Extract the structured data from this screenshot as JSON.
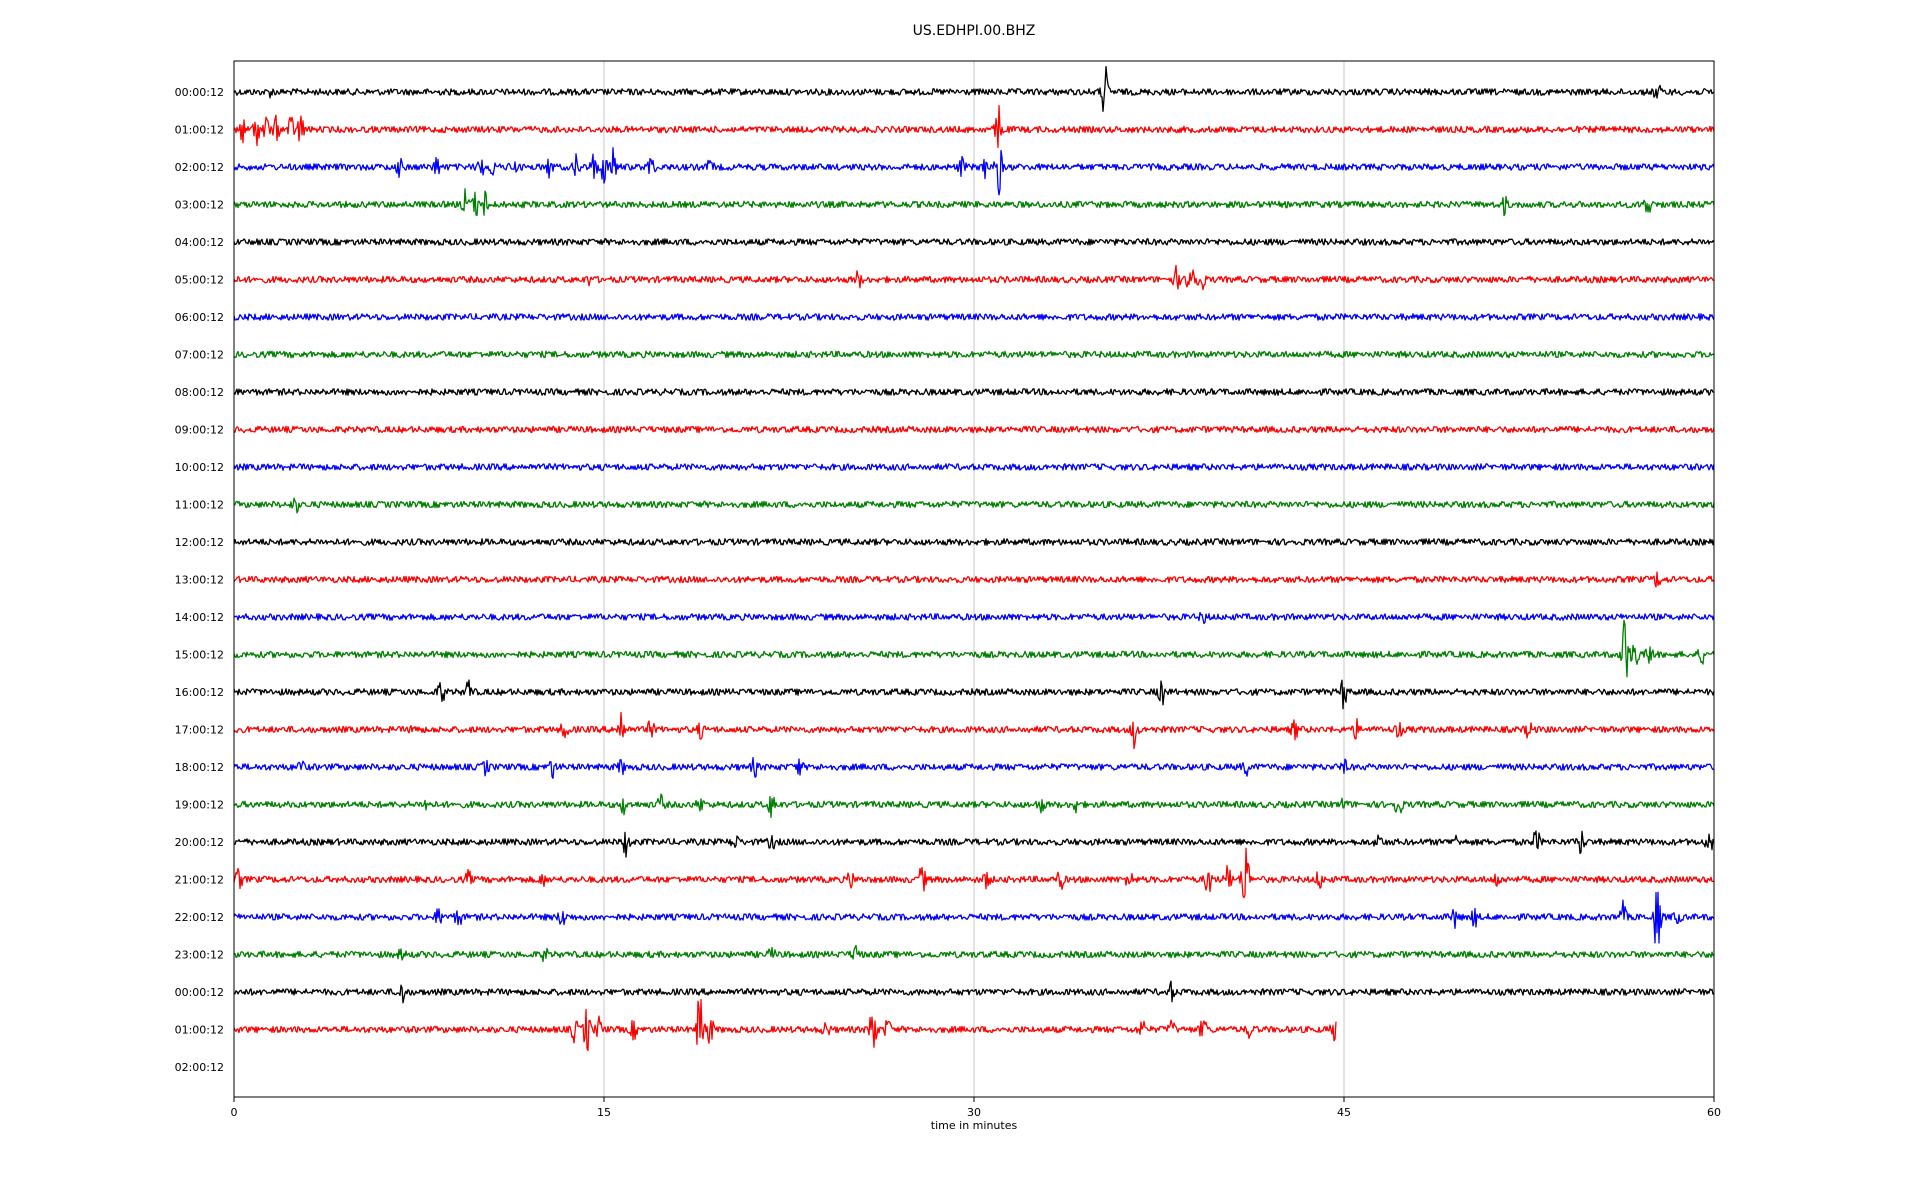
{
  "chart_data": {
    "type": "line",
    "title": "US.EDHPI.00.BHZ",
    "xlabel": "time in minutes",
    "ylabel": "",
    "xlim": [
      0,
      60
    ],
    "x_ticks": [
      0,
      15,
      30,
      45,
      60
    ],
    "x_tick_labels": [
      "0",
      "15",
      "30",
      "45",
      "60"
    ],
    "grid": "vertical",
    "colors": [
      "#000000",
      "#ff0000",
      "#0000ff",
      "#008000"
    ],
    "rows": [
      {
        "label": "00:00:12",
        "color": "#000000",
        "end": 60,
        "events": [
          {
            "t": 35.3,
            "amp": 1.0
          },
          {
            "t": 57.7,
            "amp": 0.3
          },
          {
            "t": 1.5,
            "amp": 0.12
          }
        ]
      },
      {
        "label": "01:00:12",
        "color": "#ff0000",
        "end": 60,
        "events": [
          {
            "t": 0.3,
            "amp": 0.5
          },
          {
            "t": 0.9,
            "amp": 0.55
          },
          {
            "t": 1.3,
            "amp": 0.45
          },
          {
            "t": 1.7,
            "amp": 0.4
          },
          {
            "t": 2.3,
            "amp": 0.45
          },
          {
            "t": 2.7,
            "amp": 0.55
          },
          {
            "t": 31.0,
            "amp": 0.9
          }
        ]
      },
      {
        "label": "02:00:12",
        "color": "#0000ff",
        "end": 60,
        "events": [
          {
            "t": 6.7,
            "amp": 0.3
          },
          {
            "t": 8.2,
            "amp": 0.35
          },
          {
            "t": 10.0,
            "amp": 0.35
          },
          {
            "t": 10.5,
            "amp": 0.3
          },
          {
            "t": 11.3,
            "amp": 0.3
          },
          {
            "t": 12.8,
            "amp": 0.35
          },
          {
            "t": 13.9,
            "amp": 0.45
          },
          {
            "t": 14.6,
            "amp": 0.5
          },
          {
            "t": 15.0,
            "amp": 0.55
          },
          {
            "t": 15.4,
            "amp": 0.7
          },
          {
            "t": 16.9,
            "amp": 0.45
          },
          {
            "t": 19.3,
            "amp": 0.2
          },
          {
            "t": 29.5,
            "amp": 0.3
          },
          {
            "t": 30.5,
            "amp": 0.4
          },
          {
            "t": 31.0,
            "amp": 1.0
          }
        ]
      },
      {
        "label": "03:00:12",
        "color": "#008000",
        "end": 60,
        "events": [
          {
            "t": 9.4,
            "amp": 0.55
          },
          {
            "t": 9.8,
            "amp": 0.4
          },
          {
            "t": 10.2,
            "amp": 0.45
          },
          {
            "t": 51.5,
            "amp": 0.3
          },
          {
            "t": 57.3,
            "amp": 0.45
          }
        ]
      },
      {
        "label": "04:00:12",
        "color": "#000000",
        "end": 60,
        "events": []
      },
      {
        "label": "05:00:12",
        "color": "#ff0000",
        "end": 60,
        "events": [
          {
            "t": 14.4,
            "amp": 0.15
          },
          {
            "t": 25.3,
            "amp": 0.3
          },
          {
            "t": 38.2,
            "amp": 0.4
          },
          {
            "t": 38.8,
            "amp": 1.3
          },
          {
            "t": 39.2,
            "amp": 0.5
          }
        ]
      },
      {
        "label": "06:00:12",
        "color": "#0000ff",
        "end": 60,
        "events": []
      },
      {
        "label": "07:00:12",
        "color": "#008000",
        "end": 60,
        "events": []
      },
      {
        "label": "08:00:12",
        "color": "#000000",
        "end": 60,
        "events": []
      },
      {
        "label": "09:00:12",
        "color": "#ff0000",
        "end": 60,
        "events": []
      },
      {
        "label": "10:00:12",
        "color": "#0000ff",
        "end": 60,
        "events": []
      },
      {
        "label": "11:00:12",
        "color": "#008000",
        "end": 60,
        "events": [
          {
            "t": 2.5,
            "amp": 0.25
          }
        ]
      },
      {
        "label": "12:00:12",
        "color": "#000000",
        "end": 60,
        "events": []
      },
      {
        "label": "13:00:12",
        "color": "#ff0000",
        "end": 60,
        "events": [
          {
            "t": 57.7,
            "amp": 0.25
          }
        ]
      },
      {
        "label": "14:00:12",
        "color": "#0000ff",
        "end": 60,
        "events": [
          {
            "t": 39.3,
            "amp": 0.2
          }
        ]
      },
      {
        "label": "15:00:12",
        "color": "#008000",
        "end": 60,
        "events": [
          {
            "t": 56.4,
            "amp": 1.55
          },
          {
            "t": 56.8,
            "amp": 0.8
          },
          {
            "t": 57.4,
            "amp": 0.45
          },
          {
            "t": 59.5,
            "amp": 0.3
          }
        ]
      },
      {
        "label": "16:00:12",
        "color": "#000000",
        "end": 60,
        "events": [
          {
            "t": 8.4,
            "amp": 0.45
          },
          {
            "t": 9.5,
            "amp": 0.45
          },
          {
            "t": 37.6,
            "amp": 0.45
          },
          {
            "t": 45.0,
            "amp": 0.6
          }
        ]
      },
      {
        "label": "17:00:12",
        "color": "#ff0000",
        "end": 60,
        "events": [
          {
            "t": 7.3,
            "amp": 0.2
          },
          {
            "t": 13.4,
            "amp": 0.35
          },
          {
            "t": 15.7,
            "amp": 0.75
          },
          {
            "t": 16.9,
            "amp": 0.3
          },
          {
            "t": 18.9,
            "amp": 0.25
          },
          {
            "t": 36.5,
            "amp": 0.6
          },
          {
            "t": 43.0,
            "amp": 0.35
          },
          {
            "t": 45.5,
            "amp": 0.3
          },
          {
            "t": 47.2,
            "amp": 0.3
          },
          {
            "t": 52.5,
            "amp": 0.3
          }
        ]
      },
      {
        "label": "18:00:12",
        "color": "#0000ff",
        "end": 60,
        "events": [
          {
            "t": 2.7,
            "amp": 0.25
          },
          {
            "t": 10.2,
            "amp": 0.25
          },
          {
            "t": 12.9,
            "amp": 0.35
          },
          {
            "t": 15.7,
            "amp": 0.25
          },
          {
            "t": 21.1,
            "amp": 0.3
          },
          {
            "t": 22.9,
            "amp": 0.3
          },
          {
            "t": 41.0,
            "amp": 0.3
          },
          {
            "t": 45.0,
            "amp": 0.2
          }
        ]
      },
      {
        "label": "19:00:12",
        "color": "#008000",
        "end": 60,
        "events": [
          {
            "t": 7.8,
            "amp": 0.2
          },
          {
            "t": 15.8,
            "amp": 0.3
          },
          {
            "t": 17.3,
            "amp": 0.3
          },
          {
            "t": 18.9,
            "amp": 0.25
          },
          {
            "t": 21.8,
            "amp": 0.5
          },
          {
            "t": 32.7,
            "amp": 0.3
          },
          {
            "t": 34.1,
            "amp": 0.25
          },
          {
            "t": 45.0,
            "amp": 0.2
          },
          {
            "t": 47.2,
            "amp": 0.55
          }
        ]
      },
      {
        "label": "20:00:12",
        "color": "#000000",
        "end": 60,
        "events": [
          {
            "t": 15.9,
            "amp": 0.5
          },
          {
            "t": 20.3,
            "amp": 0.3
          },
          {
            "t": 21.8,
            "amp": 0.25
          },
          {
            "t": 46.4,
            "amp": 0.3
          },
          {
            "t": 49.5,
            "amp": 0.2
          },
          {
            "t": 52.8,
            "amp": 0.45
          },
          {
            "t": 54.6,
            "amp": 0.45
          },
          {
            "t": 59.8,
            "amp": 0.5
          }
        ]
      },
      {
        "label": "21:00:12",
        "color": "#ff0000",
        "end": 60,
        "events": [
          {
            "t": 0.2,
            "amp": 0.35
          },
          {
            "t": 9.5,
            "amp": 0.25
          },
          {
            "t": 12.5,
            "amp": 0.2
          },
          {
            "t": 25.0,
            "amp": 0.3
          },
          {
            "t": 27.9,
            "amp": 0.5
          },
          {
            "t": 30.5,
            "amp": 0.3
          },
          {
            "t": 33.5,
            "amp": 0.35
          },
          {
            "t": 36.3,
            "amp": 0.35
          },
          {
            "t": 39.5,
            "amp": 0.6
          },
          {
            "t": 40.3,
            "amp": 0.5
          },
          {
            "t": 41.0,
            "amp": 1.9
          },
          {
            "t": 44.0,
            "amp": 0.35
          },
          {
            "t": 51.2,
            "amp": 0.25
          }
        ]
      },
      {
        "label": "22:00:12",
        "color": "#0000ff",
        "end": 60,
        "events": [
          {
            "t": 8.3,
            "amp": 0.3
          },
          {
            "t": 9.1,
            "amp": 0.35
          },
          {
            "t": 13.3,
            "amp": 0.35
          },
          {
            "t": 49.5,
            "amp": 0.35
          },
          {
            "t": 50.3,
            "amp": 0.3
          },
          {
            "t": 56.3,
            "amp": 0.5
          },
          {
            "t": 57.7,
            "amp": 1.45
          },
          {
            "t": 58.5,
            "amp": 0.25
          }
        ]
      },
      {
        "label": "23:00:12",
        "color": "#008000",
        "end": 60,
        "events": [
          {
            "t": 6.8,
            "amp": 0.2
          },
          {
            "t": 12.6,
            "amp": 0.2
          },
          {
            "t": 21.8,
            "amp": 0.2
          },
          {
            "t": 25.2,
            "amp": 0.35
          }
        ]
      },
      {
        "label": "00:00:12",
        "color": "#000000",
        "end": 60,
        "events": [
          {
            "t": 6.8,
            "amp": 0.4
          },
          {
            "t": 38.0,
            "amp": 0.3
          }
        ]
      },
      {
        "label": "01:00:12",
        "color": "#ff0000",
        "end": 44.7,
        "events": [
          {
            "t": 13.8,
            "amp": 0.4
          },
          {
            "t": 14.3,
            "amp": 0.9
          },
          {
            "t": 14.8,
            "amp": 0.4
          },
          {
            "t": 16.2,
            "amp": 0.3
          },
          {
            "t": 18.9,
            "amp": 1.6
          },
          {
            "t": 19.3,
            "amp": 0.5
          },
          {
            "t": 24.0,
            "amp": 0.3
          },
          {
            "t": 25.9,
            "amp": 1.2
          },
          {
            "t": 26.5,
            "amp": 0.35
          },
          {
            "t": 36.8,
            "amp": 0.35
          },
          {
            "t": 38.0,
            "amp": 0.3
          },
          {
            "t": 39.3,
            "amp": 0.45
          },
          {
            "t": 41.2,
            "amp": 0.3
          },
          {
            "t": 44.6,
            "amp": 0.35
          }
        ]
      },
      {
        "label": "02:00:12",
        "color": "#000000",
        "end": 0,
        "events": []
      }
    ]
  }
}
